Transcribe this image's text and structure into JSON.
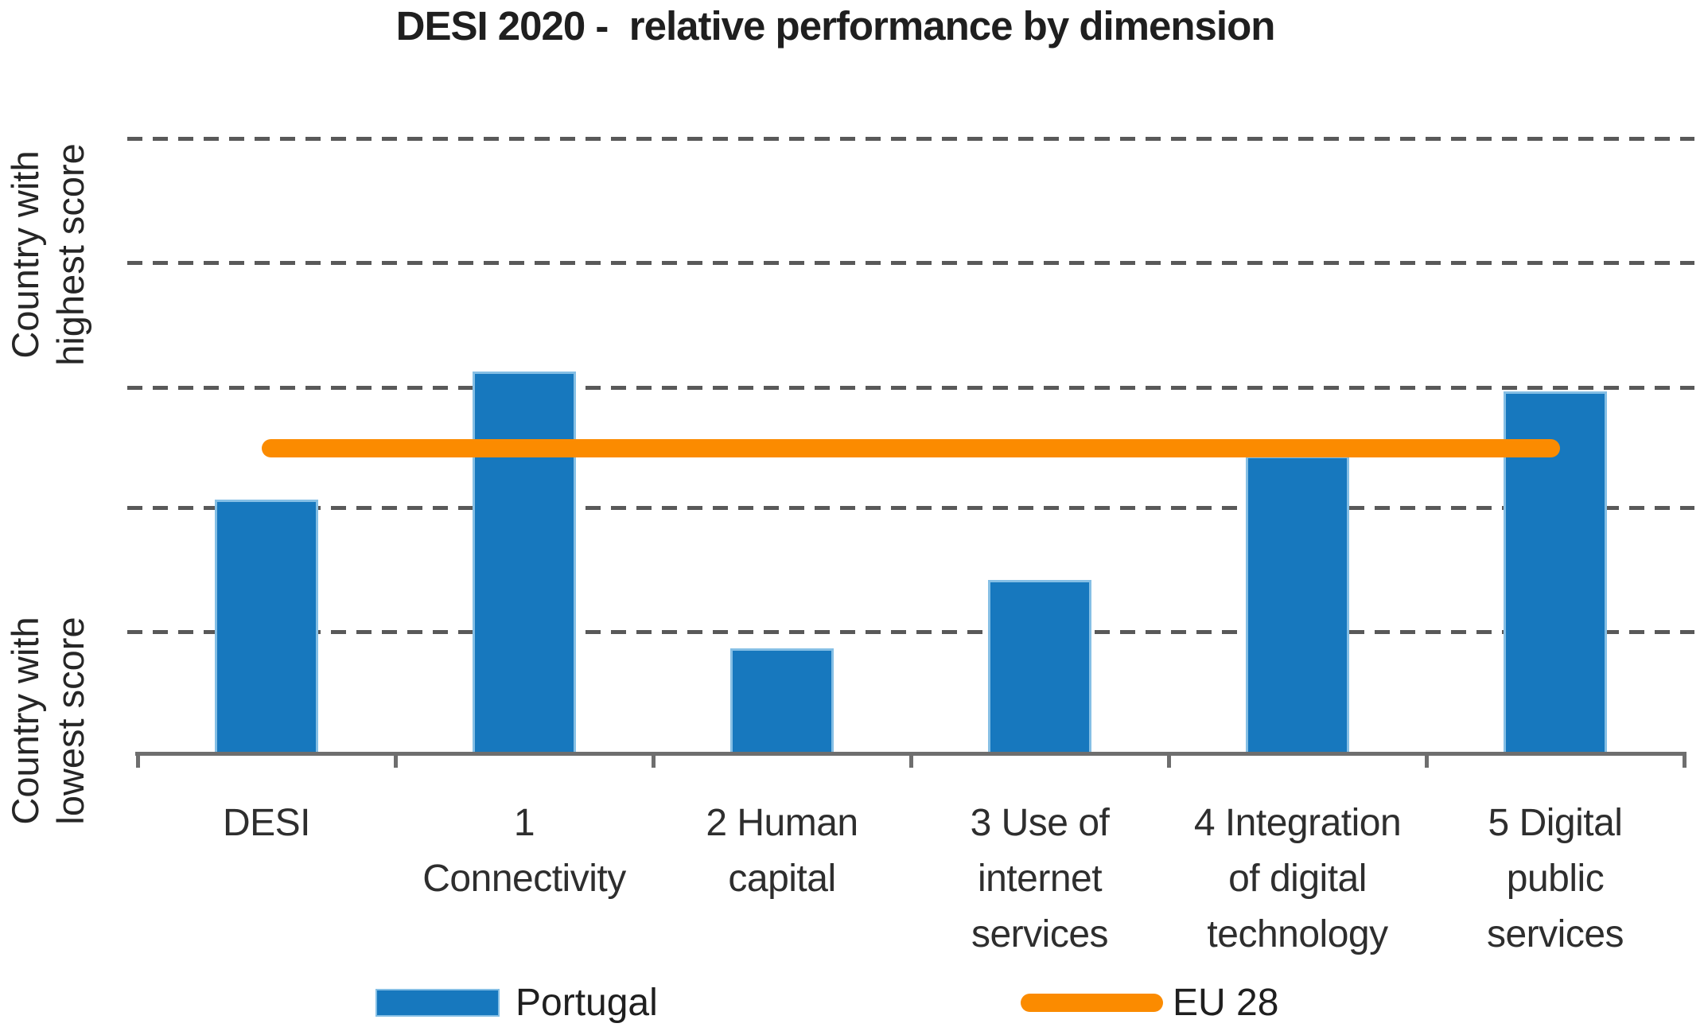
{
  "title": "DESI 2020 -  relative performance by dimension",
  "y_axis": {
    "top_label": "Country with\nhighest score",
    "bottom_label": "Country with\nlowest score"
  },
  "legend": {
    "portugal_label": "Portugal",
    "eu_label": "EU 28",
    "position": "bottom"
  },
  "colors": {
    "bar_fill": "#1778be",
    "bar_edge": "#85bfe5",
    "eu_line": "#fb8b00",
    "gridline": "#595959",
    "axis": "#6e6e6e",
    "text": "#262626"
  },
  "chart_data": {
    "type": "bar",
    "title": "DESI 2020 -  relative performance by dimension",
    "categories": [
      "DESI",
      "1 Connectivity",
      "2 Human capital",
      "3 Use of internet services",
      "4 Integration of digital technology",
      "5 Digital public services"
    ],
    "category_label_lines": [
      "DESI",
      "1\nConnectivity",
      "2 Human\ncapital",
      "3 Use of\ninternet\nservices",
      "4 Integration\nof digital\ntechnology",
      "5 Digital\npublic\nservices"
    ],
    "series": [
      {
        "name": "Portugal",
        "type": "bar",
        "color": "#1778be",
        "values_pct": [
          37.4,
          56.3,
          15.5,
          25.6,
          43.9,
          53.4
        ]
      },
      {
        "name": "EU 28",
        "type": "line",
        "color": "#fb8b00",
        "values_pct": [
          45.1,
          45.1,
          45.1,
          45.1,
          45.1,
          45.1
        ]
      }
    ],
    "value_axis": {
      "numeric_ticks": false,
      "units": "percent of plot height (qualitative scale, no numbers shown)",
      "min_label": "Country with lowest score",
      "max_label": "Country with highest score",
      "ylim": [
        0,
        100
      ],
      "gridlines_pct": [
        18.0,
        36.3,
        54.0,
        72.4,
        90.7
      ],
      "grid_style": "dashed"
    },
    "legend_position": "bottom"
  }
}
